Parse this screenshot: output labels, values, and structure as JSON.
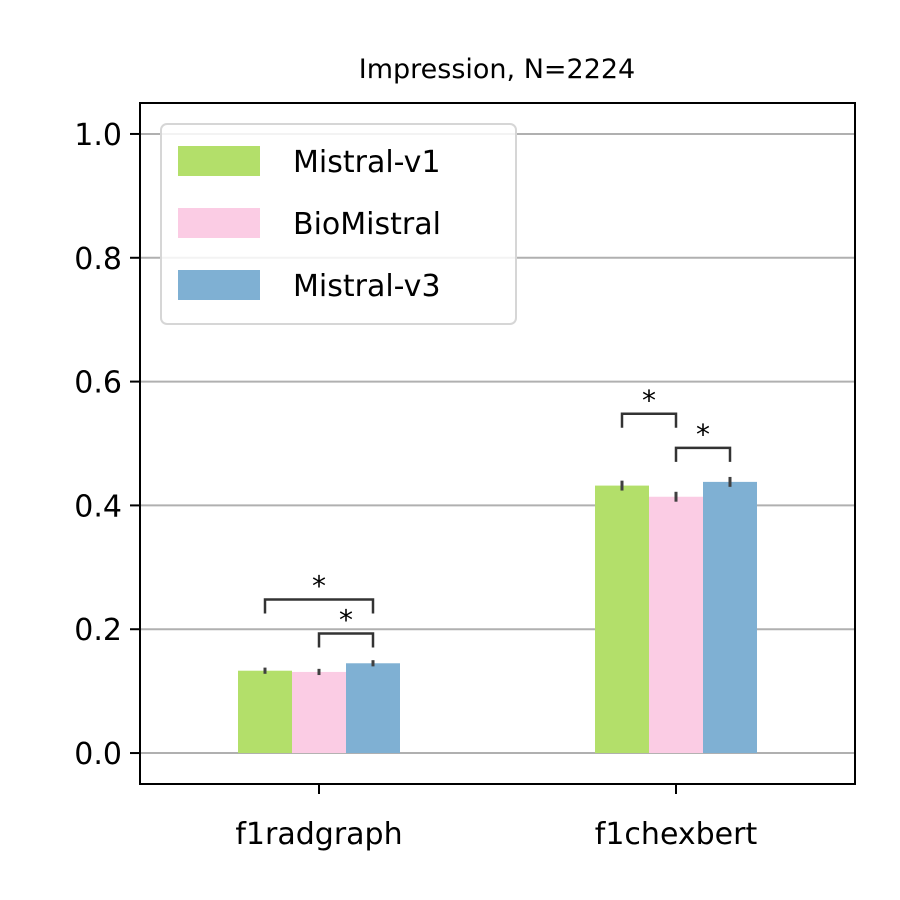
{
  "chart_data": {
    "type": "bar",
    "title": "Impression, N=2224",
    "categories": [
      "f1radgraph",
      "f1chexbert"
    ],
    "series": [
      {
        "name": "Mistral-v1",
        "values": [
          0.133,
          0.432
        ],
        "err": [
          0.005,
          0.008
        ],
        "color": "#b3df6a"
      },
      {
        "name": "BioMistral",
        "values": [
          0.131,
          0.414
        ],
        "err": [
          0.005,
          0.008
        ],
        "color": "#fbcce4"
      },
      {
        "name": "Mistral-v3",
        "values": [
          0.145,
          0.438
        ],
        "err": [
          0.005,
          0.008
        ],
        "color": "#7fb0d3"
      }
    ],
    "ylim": [
      -0.05,
      1.05
    ],
    "yticks": [
      0.0,
      0.2,
      0.4,
      0.6,
      0.8,
      1.0
    ],
    "ytick_labels": [
      "0.0",
      "0.2",
      "0.4",
      "0.6",
      "0.8",
      "1.0"
    ],
    "grid": "y",
    "legend_position": "top-left",
    "significance": [
      {
        "category": 0,
        "from_series": 0,
        "to_series": 2,
        "y": 0.248,
        "label": "*"
      },
      {
        "category": 0,
        "from_series": 1,
        "to_series": 2,
        "y": 0.193,
        "label": "*"
      },
      {
        "category": 1,
        "from_series": 0,
        "to_series": 1,
        "y": 0.548,
        "label": "*"
      },
      {
        "category": 1,
        "from_series": 1,
        "to_series": 2,
        "y": 0.493,
        "label": "*"
      }
    ],
    "grid_color": "#b0b0b0",
    "bracket_color": "#333333"
  }
}
